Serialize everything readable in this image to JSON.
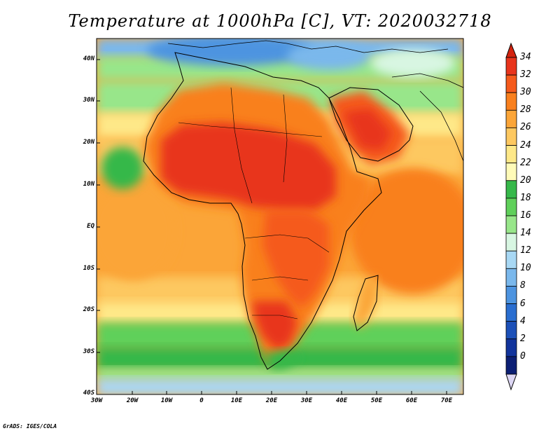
{
  "title": "Temperature at 1000hPa [C], VT: 2020032718",
  "latitude_labels": [
    "40N",
    "30N",
    "20N",
    "10N",
    "EQ",
    "10S",
    "20S",
    "30S",
    "40S"
  ],
  "longitude_labels": [
    "30W",
    "20W",
    "10W",
    "0",
    "10E",
    "20E",
    "30E",
    "40E",
    "50E",
    "60E",
    "70E"
  ],
  "colorbar": {
    "labels": [
      "34",
      "32",
      "30",
      "28",
      "26",
      "24",
      "22",
      "20",
      "18",
      "16",
      "14",
      "12",
      "10",
      "8",
      "6",
      "4",
      "2",
      "0"
    ],
    "colors": [
      "#e8341c",
      "#f55a1c",
      "#f9801e",
      "#fba538",
      "#fdc860",
      "#fee888",
      "#fffbb8",
      "#36b84a",
      "#5fd05a",
      "#98e68a",
      "#d8f6e2",
      "#a8d8f4",
      "#7ab8ec",
      "#4d94e0",
      "#2a6ed0",
      "#1c50b8",
      "#12349c",
      "#0c1f74"
    ],
    "overflow_top_color": "#d3230f",
    "underflow_color": "#ddd7f4"
  },
  "credit": "GrADS: IGES/COLA"
}
